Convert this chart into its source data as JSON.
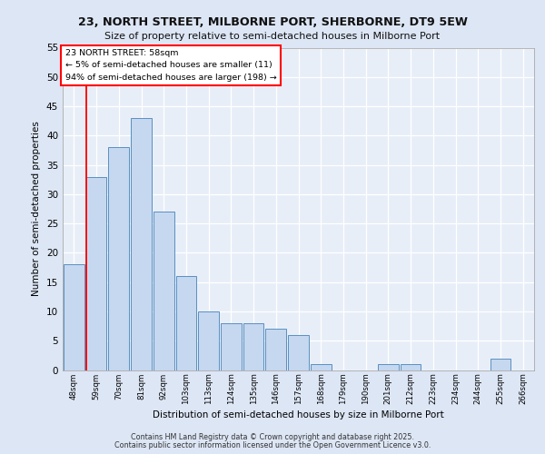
{
  "title1": "23, NORTH STREET, MILBORNE PORT, SHERBORNE, DT9 5EW",
  "title2": "Size of property relative to semi-detached houses in Milborne Port",
  "xlabel": "Distribution of semi-detached houses by size in Milborne Port",
  "ylabel": "Number of semi-detached properties",
  "bins": [
    "48sqm",
    "59sqm",
    "70sqm",
    "81sqm",
    "92sqm",
    "103sqm",
    "113sqm",
    "124sqm",
    "135sqm",
    "146sqm",
    "157sqm",
    "168sqm",
    "179sqm",
    "190sqm",
    "201sqm",
    "212sqm",
    "223sqm",
    "234sqm",
    "244sqm",
    "255sqm",
    "266sqm"
  ],
  "values": [
    18,
    33,
    38,
    43,
    27,
    16,
    10,
    8,
    8,
    7,
    6,
    1,
    0,
    0,
    1,
    1,
    0,
    0,
    0,
    2,
    0
  ],
  "bar_color": "#c5d8f0",
  "bar_edge_color": "#5a8fc0",
  "red_line_index": 1,
  "annotation_title": "23 NORTH STREET: 58sqm",
  "annotation_line1": "← 5% of semi-detached houses are smaller (11)",
  "annotation_line2": "94% of semi-detached houses are larger (198) →",
  "ylim": [
    0,
    55
  ],
  "yticks": [
    0,
    5,
    10,
    15,
    20,
    25,
    30,
    35,
    40,
    45,
    50,
    55
  ],
  "footer1": "Contains HM Land Registry data © Crown copyright and database right 2025.",
  "footer2": "Contains public sector information licensed under the Open Government Licence v3.0.",
  "bg_color": "#dde6f5",
  "plot_bg_color": "#e8eef8"
}
